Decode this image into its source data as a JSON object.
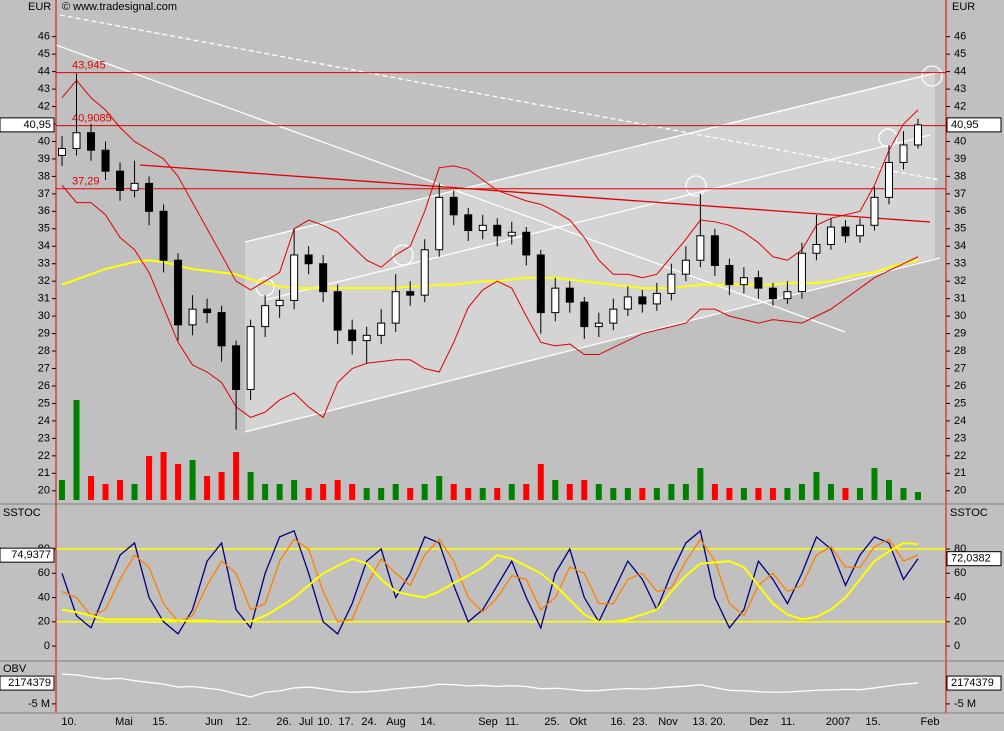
{
  "chart_data": [
    {
      "type": "candlestick",
      "title": "© www.tradesignal.com",
      "y_label": "EUR",
      "ylim": [
        19.3,
        48.1
      ],
      "yticks": [
        20,
        21,
        22,
        23,
        24,
        25,
        26,
        27,
        28,
        29,
        30,
        31,
        32,
        33,
        34,
        35,
        36,
        37,
        38,
        39,
        40,
        41,
        42,
        43,
        44,
        45,
        46
      ],
      "open": [
        39.2,
        39.6,
        40.5,
        39.5,
        38.3,
        37.2,
        37.6,
        36,
        33.2,
        29.5,
        30.4,
        30.2,
        28.3,
        25.8,
        29.4,
        30.6,
        30.9,
        33.5,
        33,
        31.4,
        29.2,
        28.6,
        28.9,
        29.6,
        31.4,
        31.2,
        33.8,
        36.8,
        35.8,
        34.9,
        35.2,
        34.6,
        34.8,
        33.5,
        30.2,
        31.6,
        30.8,
        29.4,
        29.6,
        30.4,
        31.1,
        30.7,
        31.3,
        32.4,
        33.2,
        34.6,
        32.9,
        31.8,
        32.2,
        31.6,
        31,
        31.4,
        33.6,
        34.1,
        35.1,
        34.6,
        35.2,
        36.8,
        38.8,
        39.8
      ],
      "high": [
        40.3,
        43.9,
        41.0,
        40.0,
        38.8,
        38.9,
        38.0,
        36.4,
        33.6,
        31.2,
        31.0,
        30.6,
        28.6,
        29.8,
        31.2,
        31.5,
        35.0,
        34.0,
        33.5,
        31.8,
        29.8,
        29.4,
        30.4,
        32.4,
        32.0,
        34.4,
        37.6,
        37.2,
        36.2,
        35.8,
        35.6,
        35.4,
        35.1,
        33.8,
        32.2,
        32.0,
        31.1,
        30.2,
        31.0,
        31.7,
        31.5,
        31.9,
        33.0,
        34.0,
        37.0,
        35.0,
        33.3,
        32.8,
        32.6,
        31.9,
        32.0,
        34.2,
        35.8,
        35.6,
        35.5,
        35.6,
        37.4,
        39.8,
        40.6,
        41.3
      ],
      "low": [
        38.6,
        39.2,
        38.9,
        37.8,
        36.6,
        36.8,
        35.2,
        32.5,
        28.6,
        28.9,
        29.6,
        27.4,
        23.5,
        25.2,
        28.8,
        29.9,
        30.4,
        32.4,
        30.8,
        28.4,
        27.8,
        27.3,
        28.4,
        29.1,
        30.6,
        30.8,
        33.4,
        35.2,
        34.3,
        34.4,
        34.0,
        34.1,
        32.9,
        29.0,
        29.7,
        30.2,
        28.7,
        28.8,
        29.2,
        30.0,
        30.2,
        30.3,
        30.9,
        32.0,
        32.8,
        32.3,
        31.2,
        31.3,
        31.0,
        30.6,
        30.7,
        31.0,
        33.2,
        33.8,
        34.2,
        34.2,
        34.9,
        36.4,
        38.4,
        39.6
      ],
      "close": [
        39.6,
        40.5,
        39.5,
        38.3,
        37.2,
        37.6,
        36,
        33.2,
        29.5,
        30.4,
        30.2,
        28.3,
        25.8,
        29.4,
        30.6,
        30.9,
        33.5,
        33,
        31.4,
        29.2,
        28.6,
        28.9,
        29.6,
        31.4,
        31.2,
        33.8,
        36.8,
        35.8,
        34.9,
        35.2,
        34.6,
        34.8,
        33.5,
        30.2,
        31.6,
        30.8,
        29.4,
        29.6,
        30.4,
        31.1,
        30.7,
        31.3,
        32.4,
        33.2,
        34.6,
        32.9,
        31.8,
        32.2,
        31.6,
        31,
        31.4,
        33.6,
        34.1,
        35.1,
        34.6,
        35.2,
        36.8,
        38.8,
        39.8,
        40.95
      ],
      "up_color": "#ffffff",
      "down_color": "#000000",
      "volume": {
        "values": [
          5,
          25,
          6,
          4,
          5,
          4,
          11,
          12,
          9,
          10,
          6,
          7,
          12,
          7,
          4,
          4,
          5,
          3,
          4,
          5,
          4,
          3,
          3,
          4,
          3,
          4,
          6,
          4,
          3,
          3,
          3,
          4,
          4,
          9,
          5,
          4,
          5,
          4,
          3,
          3,
          3,
          3,
          4,
          4,
          8,
          4,
          3,
          3,
          3,
          3,
          3,
          4,
          7,
          4,
          3,
          3,
          8,
          5,
          3,
          2
        ],
        "up_color": "#008000",
        "down_color": "#ff0000"
      },
      "lines": [
        {
          "color": "#ffff00",
          "width": 2,
          "values": [
            31.8,
            32.1,
            32.4,
            32.7,
            32.9,
            33.1,
            33.2,
            33.1,
            32.9,
            32.7,
            32.6,
            32.5,
            32.4,
            32.1,
            31.9,
            31.7,
            31.6,
            31.6,
            31.6,
            31.6,
            31.6,
            31.6,
            31.6,
            31.6,
            31.7,
            31.7,
            31.8,
            31.8,
            31.9,
            32.0,
            32.0,
            32.1,
            32.2,
            32.2,
            32.2,
            32.1,
            32.0,
            31.9,
            31.8,
            31.7,
            31.6,
            31.6,
            31.6,
            31.7,
            31.8,
            31.8,
            31.8,
            31.8,
            31.8,
            31.8,
            31.9,
            31.9,
            31.9,
            32.0,
            32.2,
            32.4,
            32.5,
            32.8,
            33.0,
            33.2
          ]
        },
        {
          "color": "#e00000",
          "width": 1,
          "values": [
            42.5,
            43.5,
            42.5,
            41.8,
            40.8,
            40,
            39.5,
            39,
            38,
            36.5,
            35,
            33.5,
            32,
            31.5,
            32,
            32.5,
            35,
            35.5,
            35.2,
            34.8,
            34,
            33.2,
            32.8,
            33.5,
            34,
            36,
            38.5,
            38.6,
            38.4,
            37.8,
            37.2,
            36.9,
            36.6,
            36.4,
            36.0,
            35.5,
            34.5,
            33.2,
            32.4,
            32.4,
            32.2,
            32.4,
            33.4,
            34.4,
            35.5,
            35.4,
            35.2,
            34.8,
            34.2,
            33.4,
            33.2,
            33.8,
            35.2,
            35.6,
            35.8,
            36.0,
            37.5,
            39.5,
            41,
            41.8
          ]
        },
        {
          "color": "#e00000",
          "width": 1,
          "values": [
            37.5,
            36.5,
            36.5,
            35.8,
            34.5,
            33.8,
            32.5,
            30.5,
            28.5,
            27.2,
            26.8,
            26.2,
            24.8,
            24.2,
            24.5,
            25.2,
            25.6,
            24.8,
            24.2,
            26.2,
            27.0,
            27.3,
            27.4,
            27.5,
            27.5,
            27.0,
            26.8,
            28.5,
            30.5,
            31.5,
            32.0,
            31.6,
            30.0,
            28.5,
            28.3,
            28.4,
            27.8,
            27.8,
            28.2,
            28.6,
            29.0,
            29.2,
            29.4,
            29.6,
            30.4,
            30.4,
            30.0,
            29.8,
            29.6,
            29.8,
            29.7,
            29.6,
            30.0,
            30.4,
            31.0,
            31.6,
            32.2,
            32.6,
            33.0,
            33.4
          ]
        }
      ],
      "levels": [
        {
          "value": 43.945,
          "label": "43,945"
        },
        {
          "value": 40.9085,
          "label": "40,9085"
        },
        {
          "value": 37.29,
          "label": "37,29"
        }
      ],
      "level_color": "#e00000",
      "last": {
        "value": 40.95,
        "label": "40,95"
      }
    },
    {
      "type": "line",
      "title": "SSTOC",
      "ylim": [
        -11.5,
        116.3
      ],
      "yticks": [
        0,
        20,
        40,
        60,
        80
      ],
      "levels": [
        20,
        80
      ],
      "level_color": "#ffff00",
      "series": [
        {
          "color": "#000080",
          "values": [
            60,
            25,
            15,
            45,
            75,
            85,
            40,
            20,
            10,
            30,
            70,
            85,
            30,
            15,
            60,
            90,
            95,
            60,
            20,
            10,
            35,
            70,
            80,
            40,
            60,
            90,
            85,
            50,
            20,
            30,
            50,
            70,
            40,
            15,
            60,
            80,
            40,
            20,
            45,
            70,
            55,
            30,
            60,
            85,
            95,
            40,
            15,
            30,
            70,
            55,
            35,
            60,
            90,
            80,
            50,
            75,
            90,
            85,
            55,
            72
          ]
        },
        {
          "color": "#ff8000",
          "values": [
            45,
            40,
            25,
            30,
            55,
            75,
            65,
            35,
            20,
            25,
            50,
            70,
            60,
            30,
            35,
            70,
            88,
            80,
            45,
            20,
            22,
            50,
            72,
            60,
            50,
            75,
            88,
            70,
            40,
            28,
            40,
            58,
            55,
            30,
            40,
            65,
            60,
            35,
            35,
            55,
            60,
            45,
            48,
            70,
            88,
            70,
            35,
            25,
            50,
            60,
            45,
            50,
            75,
            82,
            65,
            65,
            82,
            88,
            70,
            75
          ]
        },
        {
          "color": "#ffff00",
          "values": [
            30,
            28,
            25,
            22,
            22,
            22,
            22,
            22,
            21,
            21,
            21,
            20,
            20,
            20,
            25,
            32,
            40,
            50,
            60,
            66,
            72,
            68,
            55,
            45,
            42,
            40,
            45,
            52,
            58,
            65,
            75,
            72,
            66,
            60,
            50,
            38,
            26,
            20,
            20,
            22,
            26,
            30,
            45,
            58,
            68,
            69,
            70,
            65,
            50,
            35,
            26,
            22,
            24,
            30,
            40,
            55,
            70,
            78,
            85,
            84
          ]
        }
      ],
      "last_left": {
        "value": 74.9377,
        "label": "74,9377"
      },
      "last_right": {
        "value": 72.0382,
        "label": "72,0382"
      }
    },
    {
      "type": "line",
      "title": "OBV",
      "ylim": [
        -7800000,
        9100000
      ],
      "yticks": [
        {
          "value": -5000000,
          "label": "-5 M"
        }
      ],
      "series": [
        {
          "color": "#ffffff",
          "values": [
            5300000,
            5000000,
            4200000,
            3600000,
            3800000,
            3000000,
            2400000,
            1800000,
            800000,
            1000000,
            400000,
            -200000,
            -1500000,
            -2600000,
            -1000000,
            -500000,
            500000,
            800000,
            200000,
            -600000,
            -1000000,
            -800000,
            -400000,
            200000,
            600000,
            1000000,
            1800000,
            1600000,
            1200000,
            1400000,
            1000000,
            1300000,
            1000000,
            200000,
            400000,
            0,
            -500000,
            -400000,
            0,
            300000,
            100000,
            400000,
            800000,
            1100000,
            1600000,
            600000,
            -300000,
            -500000,
            -800000,
            -1000000,
            -900000,
            -600000,
            -300000,
            -200000,
            0,
            -100000,
            500000,
            1200000,
            1800000,
            2174379
          ]
        }
      ],
      "last": 2174379,
      "x_labels": [
        "10.",
        "Mai",
        "15.",
        "Jun",
        "12.",
        "26.",
        "Jul",
        "10.",
        "17.",
        "24.",
        "Aug",
        "14.",
        "Sep",
        "11.",
        "25.",
        "Okt",
        "16.",
        "23.",
        "Nov",
        "13.",
        "20.",
        "Dez",
        "11.",
        "2007",
        "15.",
        "Feb"
      ]
    }
  ]
}
